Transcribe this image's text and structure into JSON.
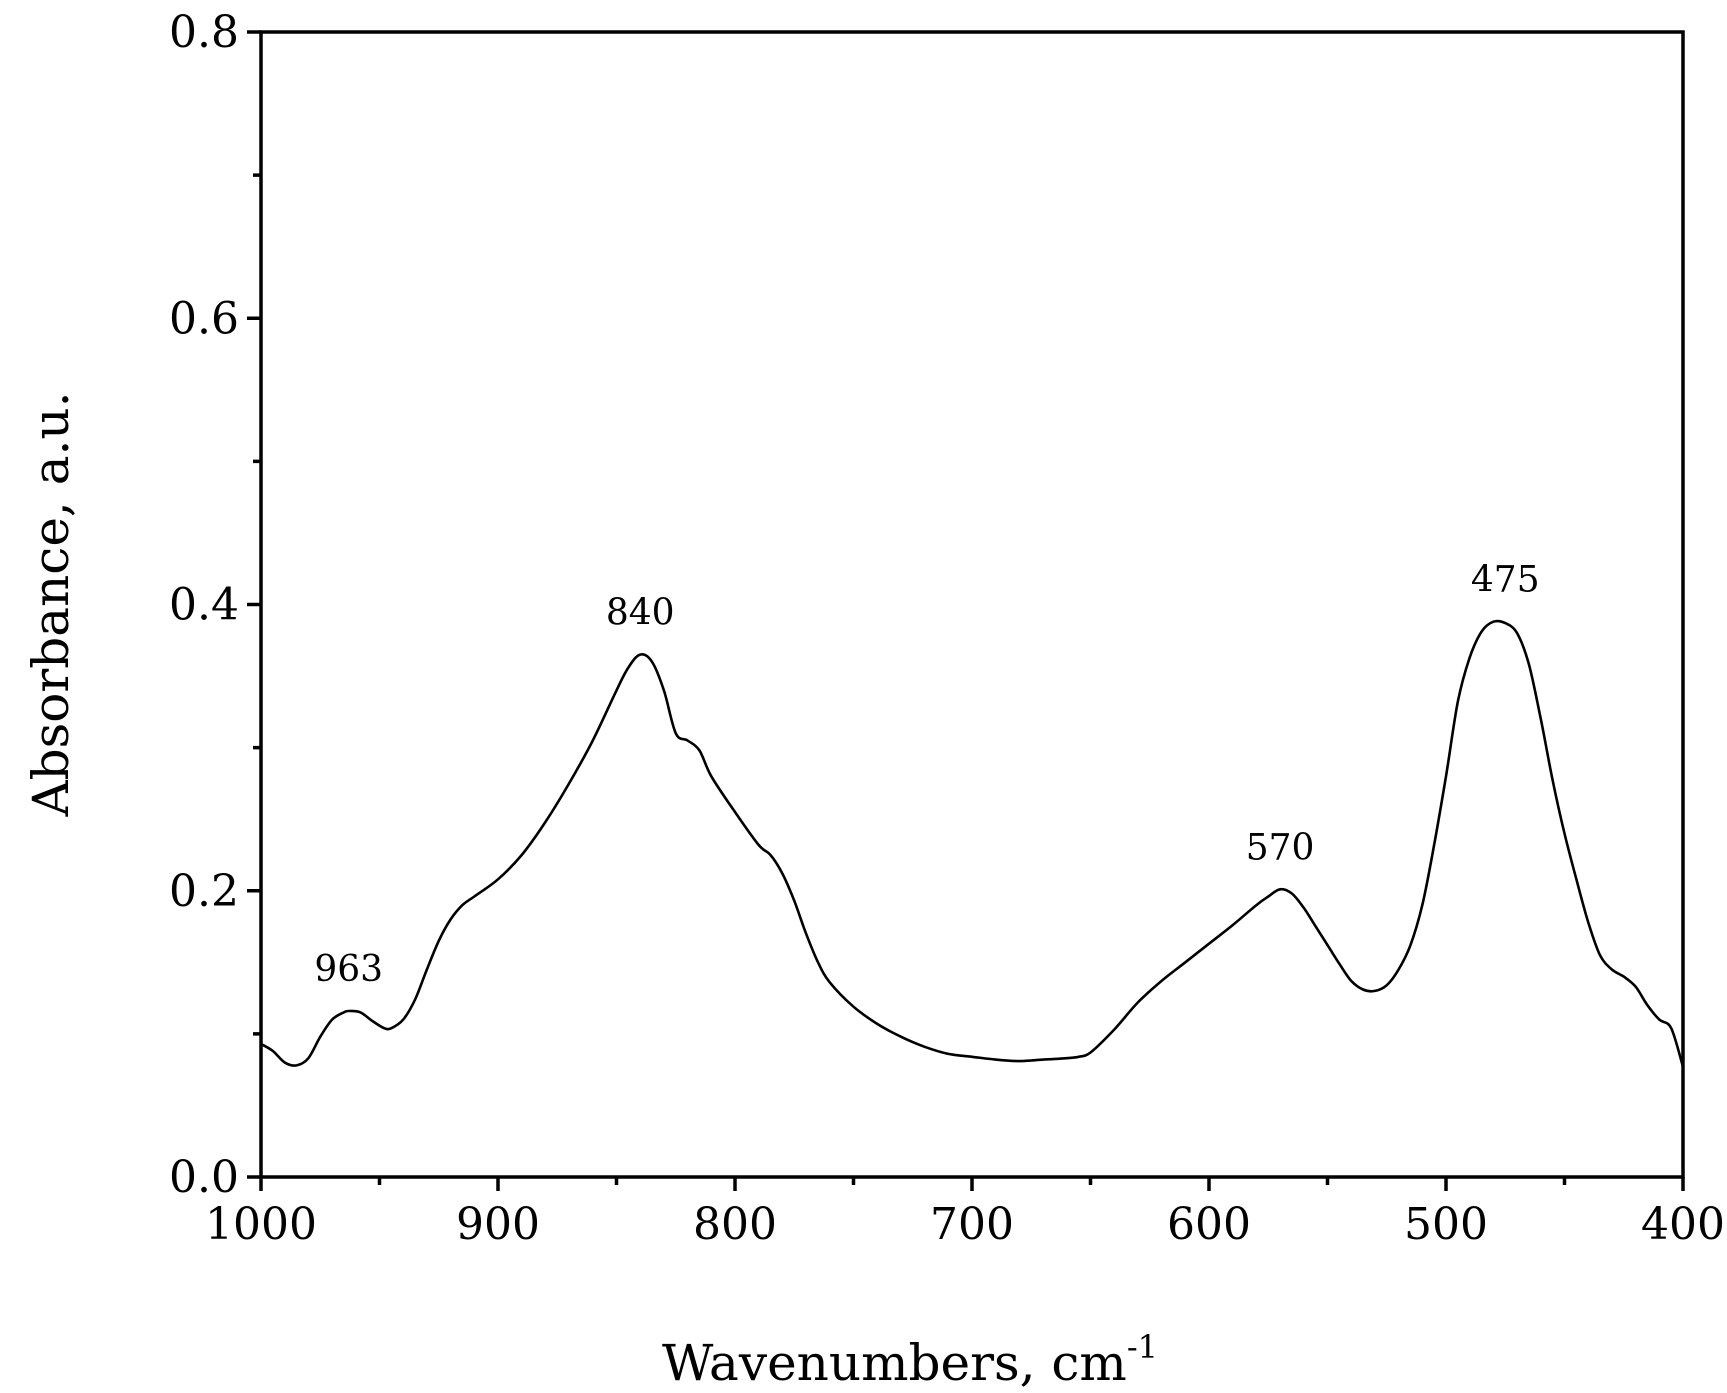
{
  "chart_data": {
    "type": "line",
    "xlabel": "Wavenumbers, cm",
    "xlabel_superscript": "-1",
    "ylabel": "Absorbance, a.u.",
    "xlim": [
      1000,
      400
    ],
    "ylim": [
      0.0,
      0.8
    ],
    "x_inverted": true,
    "grid": false,
    "x_ticks": [
      1000,
      900,
      800,
      700,
      600,
      500,
      400
    ],
    "x_tick_labels": [
      "1000",
      "900",
      "800",
      "700",
      "600",
      "500",
      "400"
    ],
    "x_minor_ticks": [
      950,
      850,
      750,
      650,
      550,
      450
    ],
    "y_ticks": [
      0.0,
      0.2,
      0.4,
      0.6,
      0.8
    ],
    "y_tick_labels": [
      "0.0",
      "0.2",
      "0.4",
      "0.6",
      "0.8"
    ],
    "y_minor_ticks": [
      0.1,
      0.3,
      0.5,
      0.7
    ],
    "series": [
      {
        "color": "#000000",
        "x": [
          1000,
          995,
          990,
          985,
          980,
          975,
          970,
          965,
          963,
          958,
          953,
          948,
          945,
          940,
          935,
          930,
          925,
          920,
          915,
          910,
          900,
          890,
          880,
          870,
          860,
          850,
          845,
          840,
          835,
          830,
          825,
          820,
          815,
          810,
          800,
          790,
          785,
          780,
          775,
          770,
          765,
          760,
          750,
          740,
          730,
          720,
          710,
          700,
          690,
          680,
          670,
          660,
          655,
          650,
          640,
          630,
          620,
          610,
          600,
          590,
          580,
          575,
          570,
          565,
          560,
          555,
          550,
          545,
          540,
          535,
          530,
          525,
          520,
          515,
          510,
          505,
          500,
          495,
          490,
          485,
          480,
          475,
          470,
          465,
          460,
          455,
          450,
          445,
          440,
          435,
          430,
          425,
          420,
          415,
          410,
          405,
          400
        ],
        "y": [
          0.093,
          0.088,
          0.08,
          0.078,
          0.083,
          0.098,
          0.11,
          0.115,
          0.116,
          0.115,
          0.109,
          0.104,
          0.104,
          0.11,
          0.124,
          0.145,
          0.165,
          0.18,
          0.19,
          0.196,
          0.208,
          0.225,
          0.248,
          0.275,
          0.305,
          0.34,
          0.356,
          0.365,
          0.36,
          0.34,
          0.31,
          0.305,
          0.298,
          0.28,
          0.255,
          0.232,
          0.225,
          0.212,
          0.193,
          0.17,
          0.15,
          0.136,
          0.119,
          0.107,
          0.098,
          0.091,
          0.086,
          0.084,
          0.082,
          0.081,
          0.082,
          0.083,
          0.084,
          0.087,
          0.103,
          0.122,
          0.137,
          0.15,
          0.163,
          0.176,
          0.19,
          0.196,
          0.201,
          0.198,
          0.188,
          0.175,
          0.162,
          0.149,
          0.137,
          0.131,
          0.13,
          0.134,
          0.145,
          0.162,
          0.19,
          0.232,
          0.28,
          0.332,
          0.363,
          0.381,
          0.388,
          0.387,
          0.38,
          0.358,
          0.32,
          0.277,
          0.24,
          0.208,
          0.178,
          0.155,
          0.145,
          0.14,
          0.133,
          0.12,
          0.11,
          0.104,
          0.077
        ]
      }
    ],
    "annotations": [
      {
        "text": "963",
        "x": 963,
        "y": 0.116
      },
      {
        "text": "840",
        "x": 840,
        "y": 0.365
      },
      {
        "text": "570",
        "x": 570,
        "y": 0.201
      },
      {
        "text": "475",
        "x": 475,
        "y": 0.388
      }
    ]
  }
}
